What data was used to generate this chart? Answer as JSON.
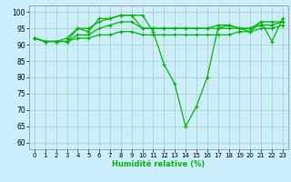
{
  "xlabel": "Humidité relative (%)",
  "background_color": "#cceeff",
  "grid_color": "#aaccaa",
  "line_color": "#00bb00",
  "xlim": [
    -0.5,
    23.5
  ],
  "ylim": [
    58,
    102
  ],
  "yticks": [
    60,
    65,
    70,
    75,
    80,
    85,
    90,
    95,
    100
  ],
  "xticks": [
    0,
    1,
    2,
    3,
    4,
    5,
    6,
    7,
    8,
    9,
    10,
    11,
    12,
    13,
    14,
    15,
    16,
    17,
    18,
    19,
    20,
    21,
    22,
    23
  ],
  "series": [
    [
      92,
      91,
      91,
      91,
      95,
      94,
      98,
      98,
      99,
      99,
      99,
      94,
      84,
      78,
      65,
      71,
      80,
      95,
      96,
      95,
      94,
      97,
      91,
      98
    ],
    [
      92,
      91,
      91,
      92,
      95,
      95,
      97,
      98,
      99,
      99,
      95,
      95,
      95,
      95,
      95,
      95,
      95,
      96,
      96,
      95,
      95,
      97,
      97,
      97
    ],
    [
      92,
      91,
      91,
      91,
      93,
      93,
      95,
      96,
      97,
      97,
      95,
      95,
      95,
      95,
      95,
      95,
      95,
      95,
      95,
      95,
      95,
      96,
      96,
      97
    ],
    [
      92,
      91,
      91,
      91,
      92,
      92,
      93,
      93,
      94,
      94,
      93,
      93,
      93,
      93,
      93,
      93,
      93,
      93,
      93,
      94,
      94,
      95,
      95,
      96
    ]
  ]
}
